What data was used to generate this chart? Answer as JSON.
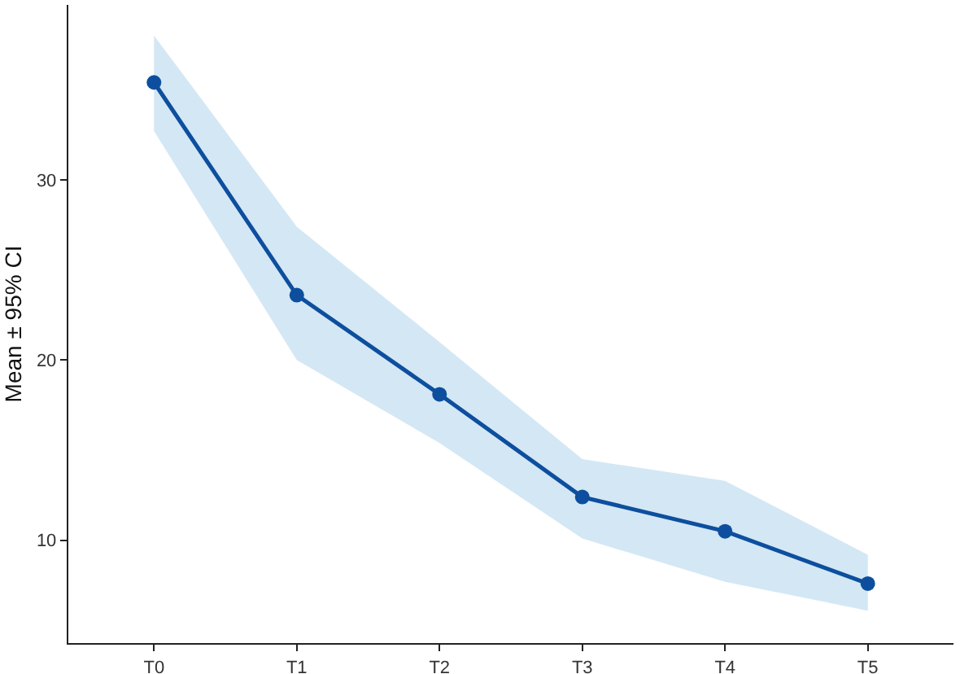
{
  "chart_data": {
    "type": "line",
    "ylabel": "Mean ± 95% CI",
    "categories": [
      "T0",
      "T1",
      "T2",
      "T3",
      "T4",
      "T5"
    ],
    "series": [
      {
        "color": "#0d4f9e",
        "values": [
          35.4,
          23.6,
          18.1,
          12.4,
          10.5,
          7.6
        ],
        "lower": [
          32.7,
          20.0,
          15.4,
          10.1,
          7.7,
          6.1
        ],
        "upper": [
          38.0,
          27.4,
          21.0,
          14.5,
          13.3,
          9.2
        ]
      }
    ],
    "ylim": [
      4.3,
      39.7
    ],
    "yticks": [
      10,
      20,
      30
    ],
    "grid": false,
    "marker": "circle",
    "line_style": "solid"
  }
}
